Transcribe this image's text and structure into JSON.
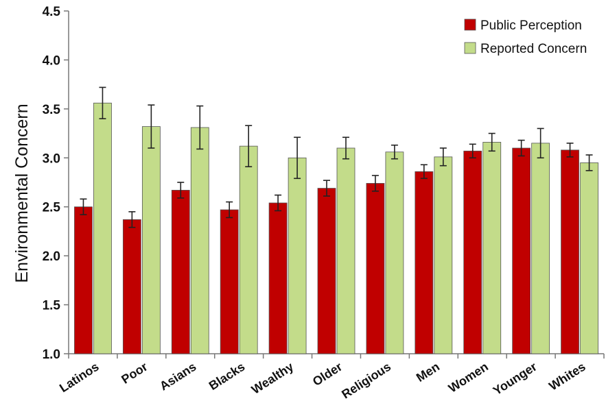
{
  "chart_data": {
    "type": "bar",
    "title": "",
    "xlabel": "",
    "ylabel": "Environmental Concern",
    "ylim": [
      1.0,
      4.5
    ],
    "yticks": [
      "1.0",
      "1.5",
      "2.0",
      "2.5",
      "3.0",
      "3.5",
      "4.0",
      "4.5"
    ],
    "grid": false,
    "legend_position": "top-right",
    "categories": [
      "Latinos",
      "Poor",
      "Asians",
      "Blacks",
      "Wealthy",
      "Older",
      "Religious",
      "Men",
      "Women",
      "Younger",
      "Whites"
    ],
    "series": [
      {
        "name": "Public Perception",
        "color": "#c00000",
        "values": [
          2.5,
          2.37,
          2.67,
          2.47,
          2.54,
          2.69,
          2.74,
          2.86,
          3.07,
          3.1,
          3.08
        ],
        "errors": [
          0.08,
          0.08,
          0.08,
          0.08,
          0.08,
          0.08,
          0.08,
          0.07,
          0.07,
          0.08,
          0.07
        ]
      },
      {
        "name": "Reported Concern",
        "color": "#c3dc8a",
        "values": [
          3.56,
          3.32,
          3.31,
          3.12,
          3.0,
          3.1,
          3.06,
          3.01,
          3.16,
          3.15,
          2.95
        ],
        "errors": [
          0.16,
          0.22,
          0.22,
          0.21,
          0.21,
          0.11,
          0.07,
          0.09,
          0.09,
          0.15,
          0.08
        ]
      }
    ]
  }
}
